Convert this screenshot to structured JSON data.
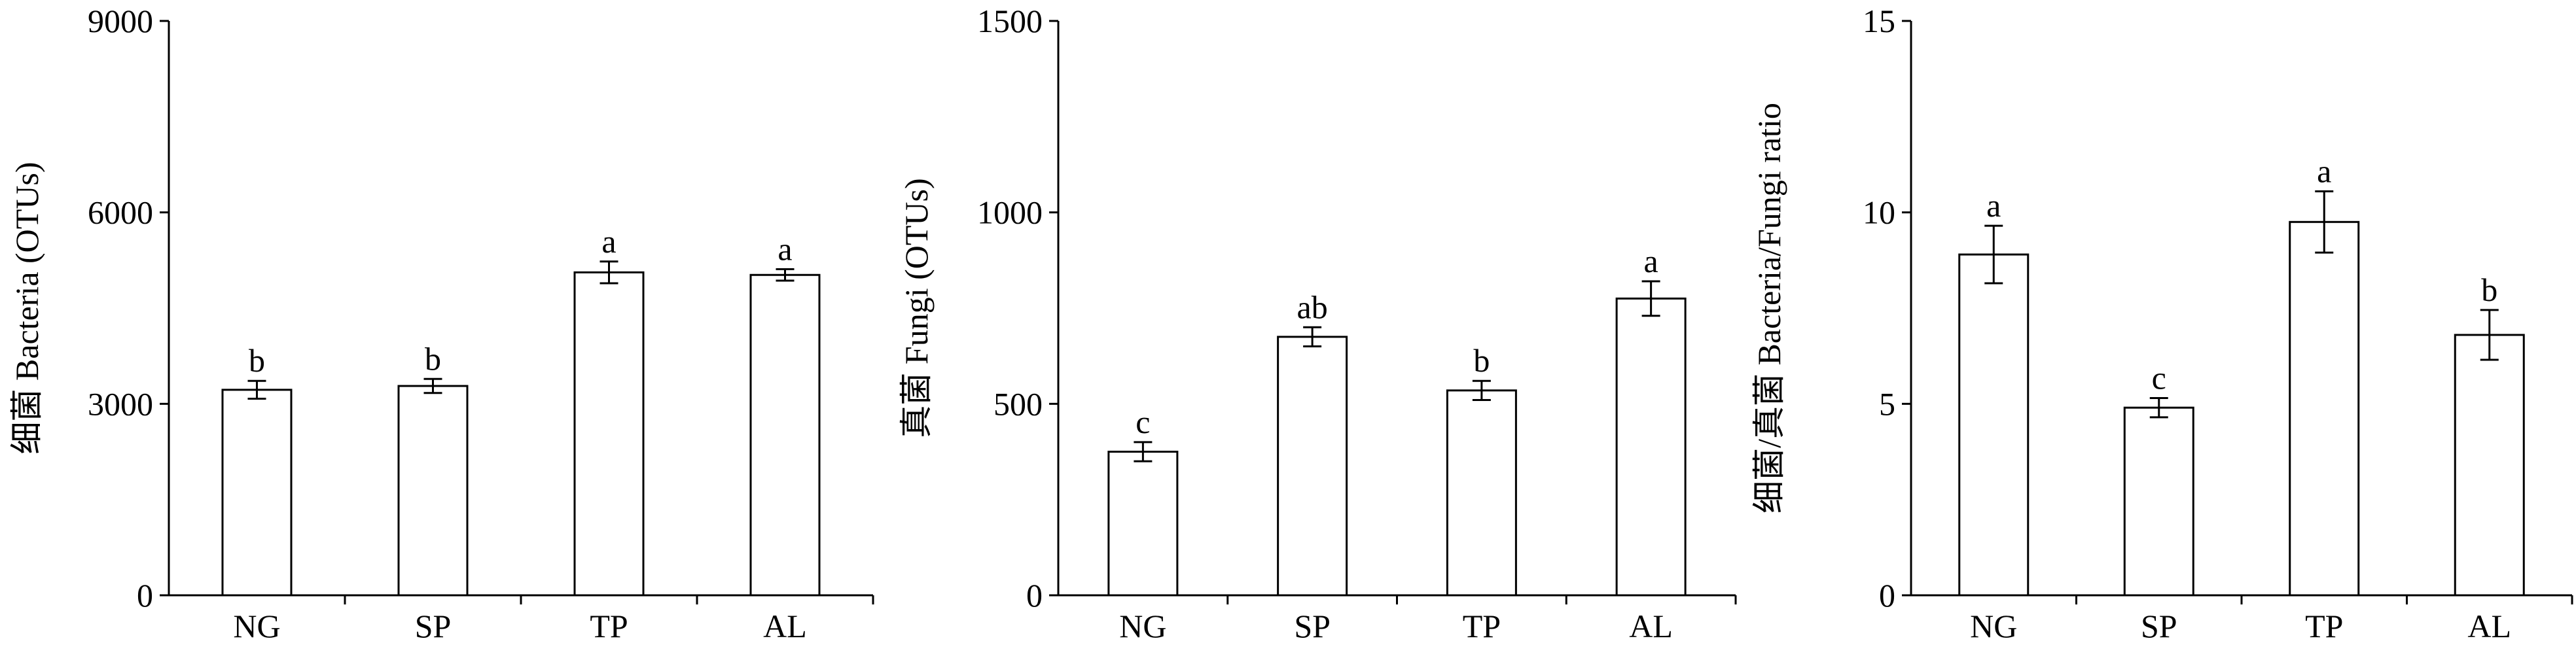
{
  "chart_data": [
    {
      "type": "bar",
      "categories": [
        "NG",
        "SP",
        "TP",
        "AL"
      ],
      "values": [
        3220,
        3280,
        5060,
        5020
      ],
      "errors": [
        140,
        110,
        170,
        90
      ],
      "significance": [
        "b",
        "b",
        "a",
        "a"
      ],
      "ylabel": "细菌 Bacteria (OTUs)",
      "ylim": [
        0,
        9000
      ],
      "yticks": [
        0,
        3000,
        6000,
        9000
      ],
      "ytick_labels": [
        "0",
        "3000",
        "6000",
        "9000"
      ]
    },
    {
      "type": "bar",
      "categories": [
        "NG",
        "SP",
        "TP",
        "AL"
      ],
      "values": [
        375,
        675,
        535,
        775
      ],
      "errors": [
        25,
        25,
        25,
        45
      ],
      "significance": [
        "c",
        "ab",
        "b",
        "a"
      ],
      "ylabel": "真菌 Fungi (OTUs)",
      "ylim": [
        0,
        1500
      ],
      "yticks": [
        0,
        500,
        1000,
        1500
      ],
      "ytick_labels": [
        "0",
        "500",
        "1000",
        "1500"
      ]
    },
    {
      "type": "bar",
      "categories": [
        "NG",
        "SP",
        "TP",
        "AL"
      ],
      "values": [
        8.9,
        4.9,
        9.75,
        6.8
      ],
      "errors": [
        0.75,
        0.25,
        0.8,
        0.65
      ],
      "significance": [
        "a",
        "c",
        "a",
        "b"
      ],
      "ylabel": "细菌/真菌 Bacteria/Fungi ratio",
      "ylim": [
        0,
        15
      ],
      "yticks": [
        0,
        5,
        10,
        15
      ],
      "ytick_labels": [
        "0",
        "5",
        "10",
        "15"
      ]
    }
  ]
}
